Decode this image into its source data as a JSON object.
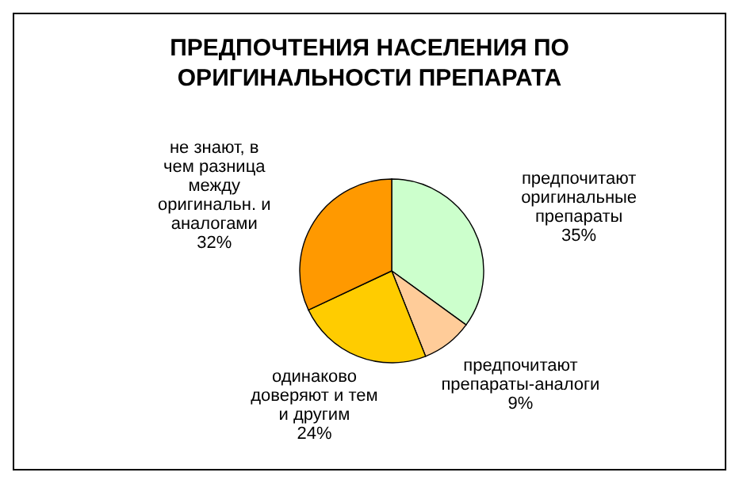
{
  "chart_data": {
    "type": "pie",
    "title": "ПРЕДПОЧТЕНИЯ НАСЕЛЕНИЯ ПО ОРИГИНАЛЬНОСТИ ПРЕПАРАТА",
    "categories": [
      "предпочитают оригинальные препараты",
      "предпочитают препараты-аналоги",
      "одинаково доверяют и тем и другим",
      "не знают, в чем разница между оригинальн. и аналогами"
    ],
    "values": [
      35,
      9,
      24,
      32
    ],
    "colors": [
      "#ccffcc",
      "#ffcc99",
      "#ffcc00",
      "#ff9900"
    ],
    "value_labels": [
      "35%",
      "9%",
      "24%",
      "32%"
    ]
  }
}
